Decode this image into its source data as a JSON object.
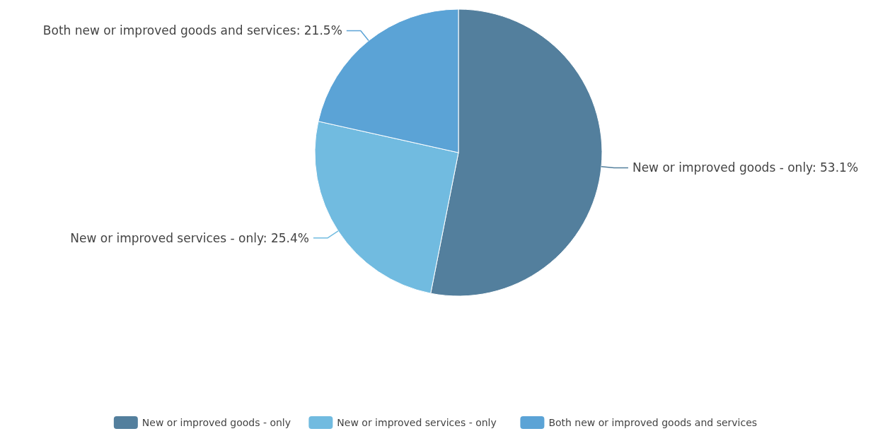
{
  "chart_data": {
    "type": "pie",
    "categories": [
      "New or improved goods - only",
      "New or improved services - only",
      "Both new or improved goods and services"
    ],
    "values": [
      53.1,
      25.4,
      21.5
    ],
    "colors": [
      "#537f9d",
      "#71bbe0",
      "#5ba3d6"
    ],
    "value_labels": [
      "New or improved goods - only: 53.1%",
      "New or improved services - only: 25.4%",
      "Both new or improved goods and services: 21.5%"
    ],
    "legend": "bottom"
  }
}
